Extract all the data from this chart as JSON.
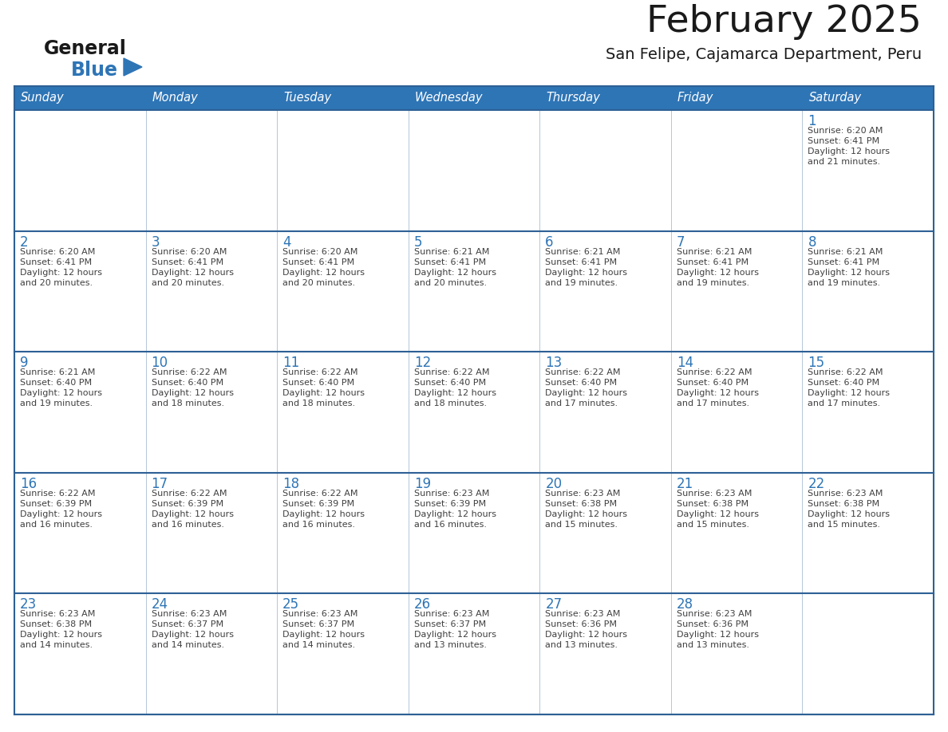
{
  "title": "February 2025",
  "subtitle": "San Felipe, Cajamarca Department, Peru",
  "days_of_week": [
    "Sunday",
    "Monday",
    "Tuesday",
    "Wednesday",
    "Thursday",
    "Friday",
    "Saturday"
  ],
  "header_bg": "#2E75B6",
  "header_text_color": "#FFFFFF",
  "cell_border_color": "#2E6095",
  "row_separator_color": "#2E6095",
  "day_number_color": "#2E75B6",
  "cell_text_color": "#404040",
  "background_color": "#FFFFFF",
  "logo_general_color": "#1a1a1a",
  "logo_blue_color": "#2E75B6",
  "calendar_data": [
    [
      null,
      null,
      null,
      null,
      null,
      null,
      {
        "day": 1,
        "sunrise": "6:20 AM",
        "sunset": "6:41 PM",
        "daylight_hours": 12,
        "daylight_minutes": 21
      }
    ],
    [
      {
        "day": 2,
        "sunrise": "6:20 AM",
        "sunset": "6:41 PM",
        "daylight_hours": 12,
        "daylight_minutes": 20
      },
      {
        "day": 3,
        "sunrise": "6:20 AM",
        "sunset": "6:41 PM",
        "daylight_hours": 12,
        "daylight_minutes": 20
      },
      {
        "day": 4,
        "sunrise": "6:20 AM",
        "sunset": "6:41 PM",
        "daylight_hours": 12,
        "daylight_minutes": 20
      },
      {
        "day": 5,
        "sunrise": "6:21 AM",
        "sunset": "6:41 PM",
        "daylight_hours": 12,
        "daylight_minutes": 20
      },
      {
        "day": 6,
        "sunrise": "6:21 AM",
        "sunset": "6:41 PM",
        "daylight_hours": 12,
        "daylight_minutes": 19
      },
      {
        "day": 7,
        "sunrise": "6:21 AM",
        "sunset": "6:41 PM",
        "daylight_hours": 12,
        "daylight_minutes": 19
      },
      {
        "day": 8,
        "sunrise": "6:21 AM",
        "sunset": "6:41 PM",
        "daylight_hours": 12,
        "daylight_minutes": 19
      }
    ],
    [
      {
        "day": 9,
        "sunrise": "6:21 AM",
        "sunset": "6:40 PM",
        "daylight_hours": 12,
        "daylight_minutes": 19
      },
      {
        "day": 10,
        "sunrise": "6:22 AM",
        "sunset": "6:40 PM",
        "daylight_hours": 12,
        "daylight_minutes": 18
      },
      {
        "day": 11,
        "sunrise": "6:22 AM",
        "sunset": "6:40 PM",
        "daylight_hours": 12,
        "daylight_minutes": 18
      },
      {
        "day": 12,
        "sunrise": "6:22 AM",
        "sunset": "6:40 PM",
        "daylight_hours": 12,
        "daylight_minutes": 18
      },
      {
        "day": 13,
        "sunrise": "6:22 AM",
        "sunset": "6:40 PM",
        "daylight_hours": 12,
        "daylight_minutes": 17
      },
      {
        "day": 14,
        "sunrise": "6:22 AM",
        "sunset": "6:40 PM",
        "daylight_hours": 12,
        "daylight_minutes": 17
      },
      {
        "day": 15,
        "sunrise": "6:22 AM",
        "sunset": "6:40 PM",
        "daylight_hours": 12,
        "daylight_minutes": 17
      }
    ],
    [
      {
        "day": 16,
        "sunrise": "6:22 AM",
        "sunset": "6:39 PM",
        "daylight_hours": 12,
        "daylight_minutes": 16
      },
      {
        "day": 17,
        "sunrise": "6:22 AM",
        "sunset": "6:39 PM",
        "daylight_hours": 12,
        "daylight_minutes": 16
      },
      {
        "day": 18,
        "sunrise": "6:22 AM",
        "sunset": "6:39 PM",
        "daylight_hours": 12,
        "daylight_minutes": 16
      },
      {
        "day": 19,
        "sunrise": "6:23 AM",
        "sunset": "6:39 PM",
        "daylight_hours": 12,
        "daylight_minutes": 16
      },
      {
        "day": 20,
        "sunrise": "6:23 AM",
        "sunset": "6:38 PM",
        "daylight_hours": 12,
        "daylight_minutes": 15
      },
      {
        "day": 21,
        "sunrise": "6:23 AM",
        "sunset": "6:38 PM",
        "daylight_hours": 12,
        "daylight_minutes": 15
      },
      {
        "day": 22,
        "sunrise": "6:23 AM",
        "sunset": "6:38 PM",
        "daylight_hours": 12,
        "daylight_minutes": 15
      }
    ],
    [
      {
        "day": 23,
        "sunrise": "6:23 AM",
        "sunset": "6:38 PM",
        "daylight_hours": 12,
        "daylight_minutes": 14
      },
      {
        "day": 24,
        "sunrise": "6:23 AM",
        "sunset": "6:37 PM",
        "daylight_hours": 12,
        "daylight_minutes": 14
      },
      {
        "day": 25,
        "sunrise": "6:23 AM",
        "sunset": "6:37 PM",
        "daylight_hours": 12,
        "daylight_minutes": 14
      },
      {
        "day": 26,
        "sunrise": "6:23 AM",
        "sunset": "6:37 PM",
        "daylight_hours": 12,
        "daylight_minutes": 13
      },
      {
        "day": 27,
        "sunrise": "6:23 AM",
        "sunset": "6:36 PM",
        "daylight_hours": 12,
        "daylight_minutes": 13
      },
      {
        "day": 28,
        "sunrise": "6:23 AM",
        "sunset": "6:36 PM",
        "daylight_hours": 12,
        "daylight_minutes": 13
      },
      null
    ]
  ]
}
